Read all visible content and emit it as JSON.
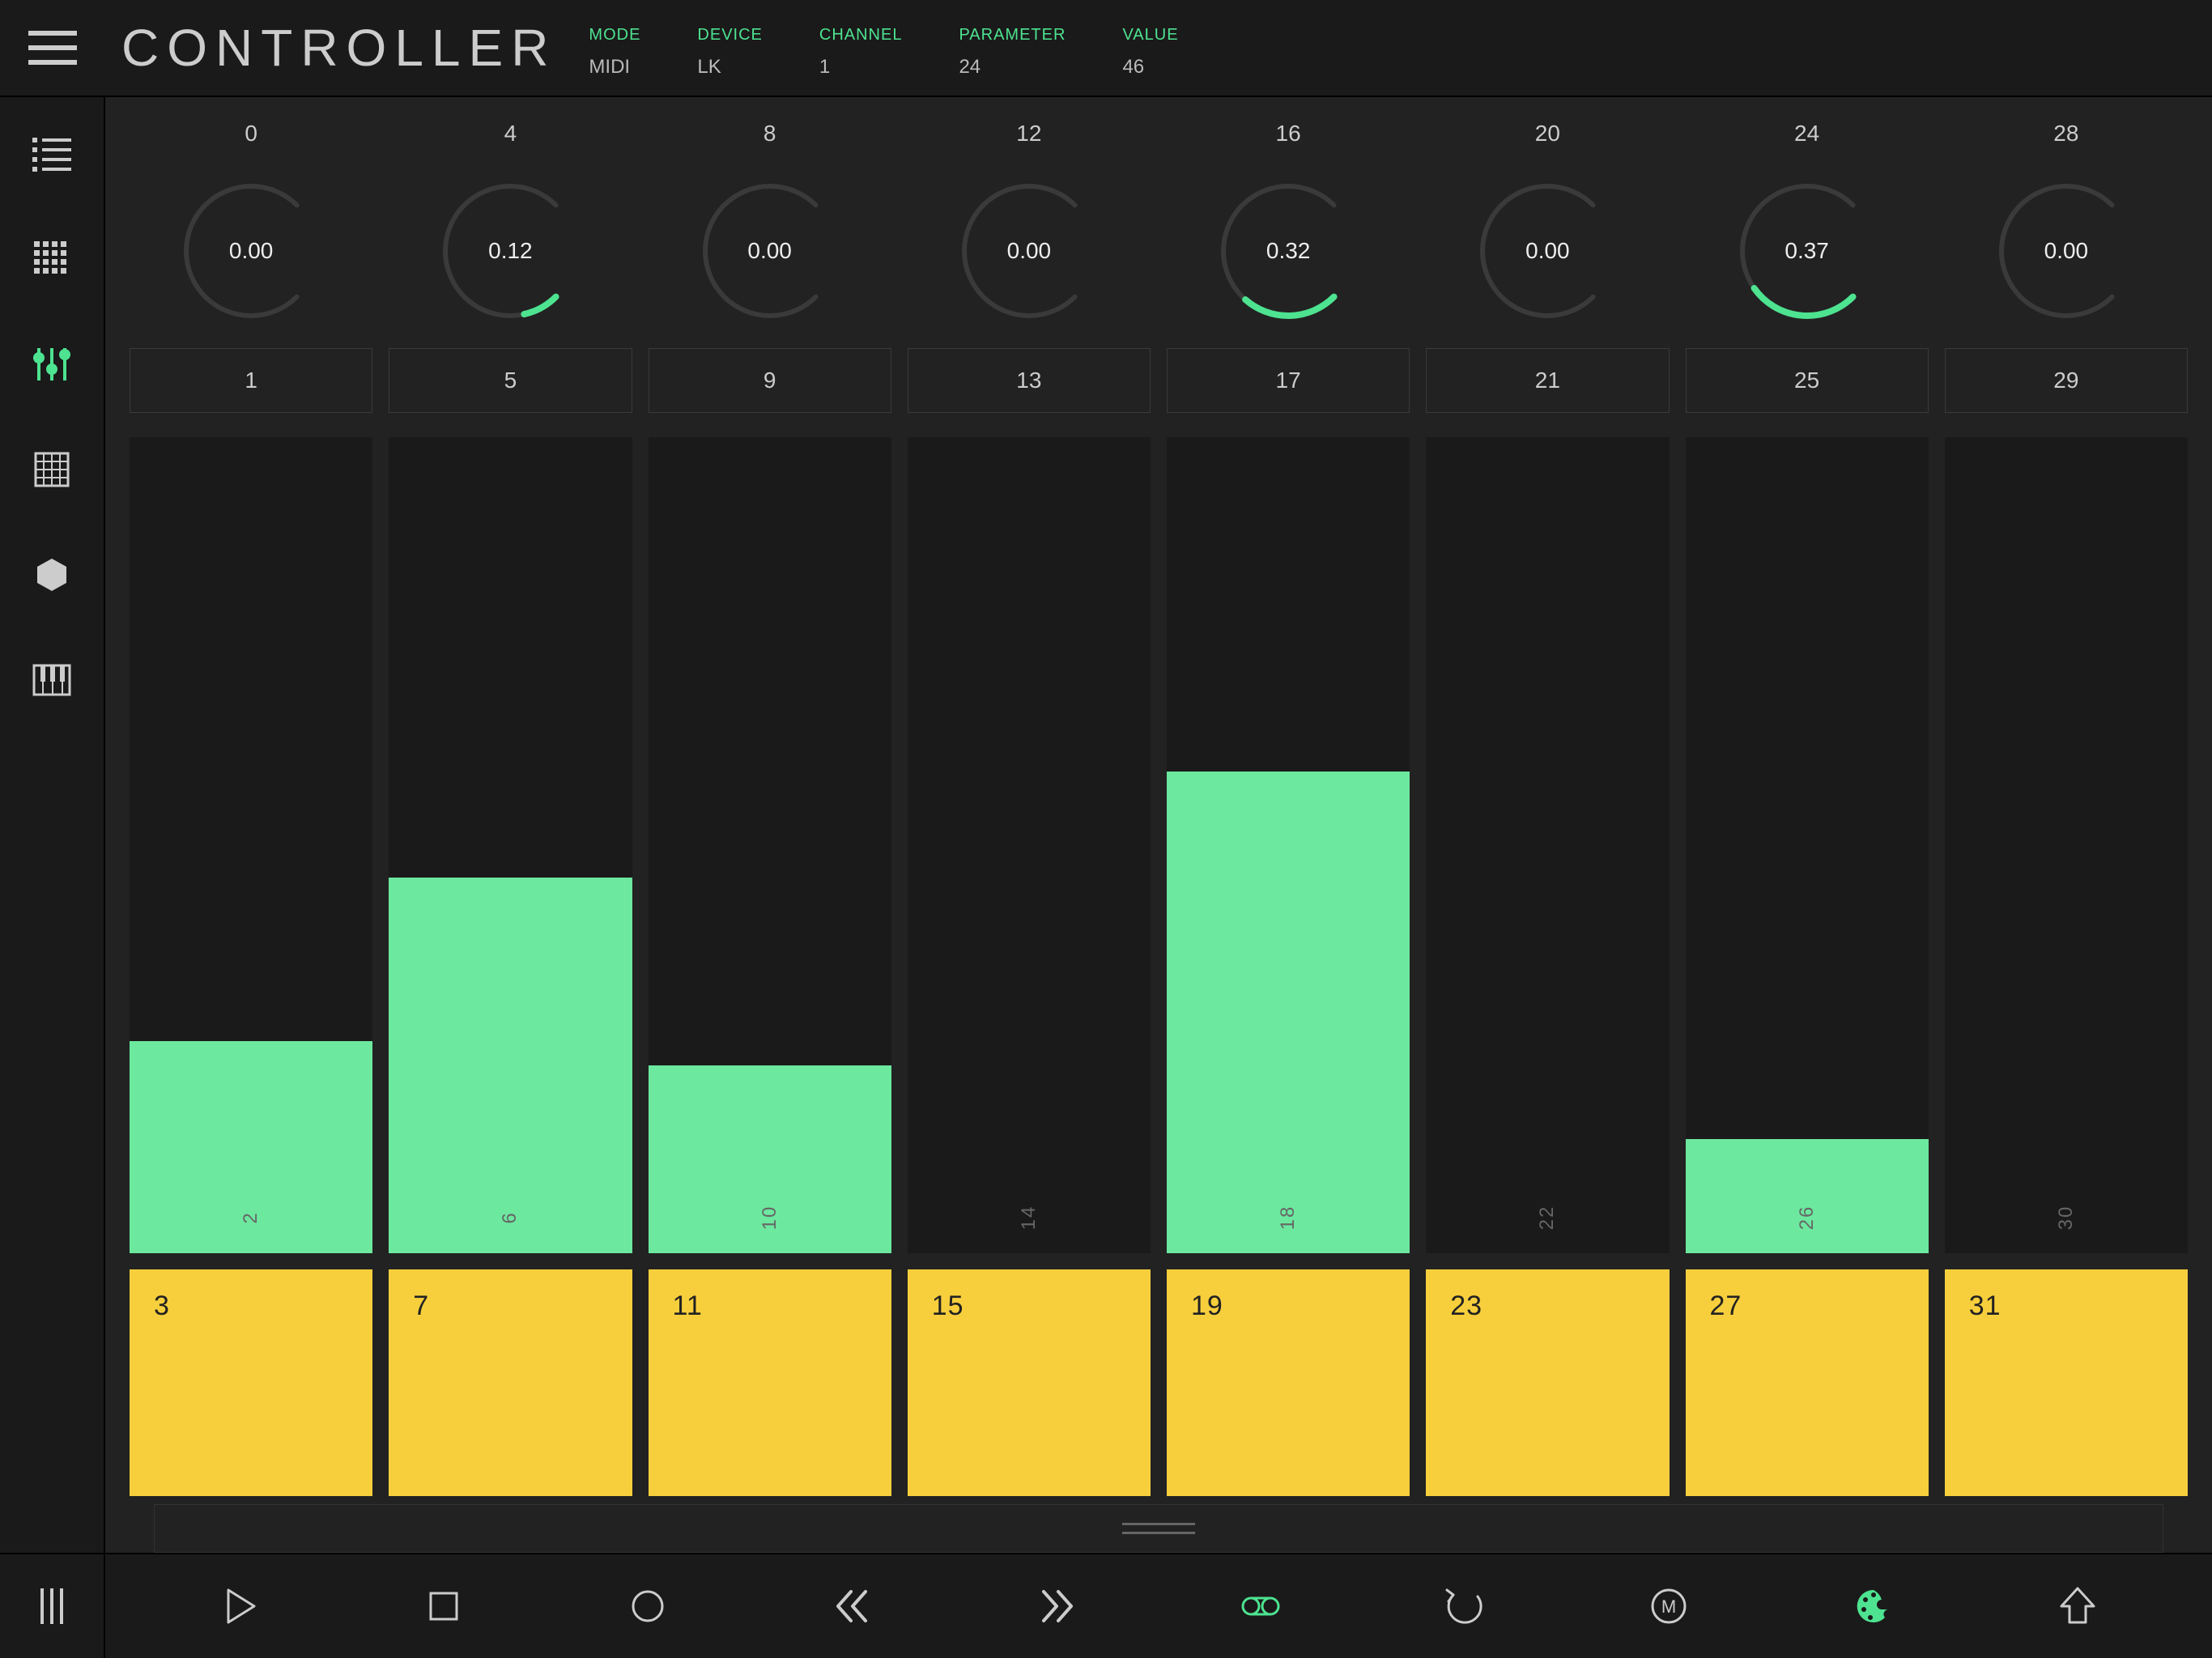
{
  "header": {
    "title": "CONTROLLER",
    "status": [
      {
        "label": "MODE",
        "value": "MIDI"
      },
      {
        "label": "DEVICE",
        "value": "LK"
      },
      {
        "label": "CHANNEL",
        "value": "1"
      },
      {
        "label": "PARAMETER",
        "value": "24"
      },
      {
        "label": "VALUE",
        "value": "46"
      }
    ]
  },
  "colors": {
    "accent": "#4de390",
    "fader_fill": "#6ce89f",
    "pad": "#f7cf3c",
    "pad_text": "#222",
    "bg_dark": "#1a1a1a",
    "bg_panel": "#222",
    "knob_ring": "#3a3a3a",
    "text_muted": "#666"
  },
  "sidebar": {
    "items": [
      {
        "name": "list-icon",
        "active": false
      },
      {
        "name": "grid-icon",
        "active": false
      },
      {
        "name": "faders-icon",
        "active": true
      },
      {
        "name": "matrix-icon",
        "active": false
      },
      {
        "name": "hexagon-icon",
        "active": false
      },
      {
        "name": "piano-icon",
        "active": false
      }
    ]
  },
  "columns": [
    {
      "knob_label": "0",
      "knob_value": 0.0,
      "knob_text": "0.00",
      "button": "1",
      "fader": 0.26,
      "fader_num": "2",
      "pad": "3"
    },
    {
      "knob_label": "4",
      "knob_value": 0.12,
      "knob_text": "0.12",
      "button": "5",
      "fader": 0.46,
      "fader_num": "6",
      "pad": "7"
    },
    {
      "knob_label": "8",
      "knob_value": 0.0,
      "knob_text": "0.00",
      "button": "9",
      "fader": 0.23,
      "fader_num": "10",
      "pad": "11"
    },
    {
      "knob_label": "12",
      "knob_value": 0.0,
      "knob_text": "0.00",
      "button": "13",
      "fader": 0.0,
      "fader_num": "14",
      "pad": "15"
    },
    {
      "knob_label": "16",
      "knob_value": 0.32,
      "knob_text": "0.32",
      "button": "17",
      "fader": 0.59,
      "fader_num": "18",
      "pad": "19"
    },
    {
      "knob_label": "20",
      "knob_value": 0.0,
      "knob_text": "0.00",
      "button": "21",
      "fader": 0.0,
      "fader_num": "22",
      "pad": "23"
    },
    {
      "knob_label": "24",
      "knob_value": 0.37,
      "knob_text": "0.37",
      "button": "25",
      "fader": 0.14,
      "fader_num": "26",
      "pad": "27"
    },
    {
      "knob_label": "28",
      "knob_value": 0.0,
      "knob_text": "0.00",
      "button": "29",
      "fader": 0.0,
      "fader_num": "30",
      "pad": "31"
    }
  ],
  "transport": {
    "items": [
      {
        "name": "play-icon",
        "active": false
      },
      {
        "name": "stop-icon",
        "active": false
      },
      {
        "name": "record-icon",
        "active": false
      },
      {
        "name": "rewind-icon",
        "active": false
      },
      {
        "name": "forward-icon",
        "active": false
      },
      {
        "name": "loop-icon",
        "active": true
      },
      {
        "name": "undo-icon",
        "active": false
      },
      {
        "name": "metronome-icon",
        "active": false
      },
      {
        "name": "palette-icon",
        "active": true
      },
      {
        "name": "shift-icon",
        "active": false
      }
    ]
  },
  "knob_style": {
    "radius": 80,
    "ring_width": 6,
    "start_angle": 135,
    "sweep_angle": 270
  }
}
